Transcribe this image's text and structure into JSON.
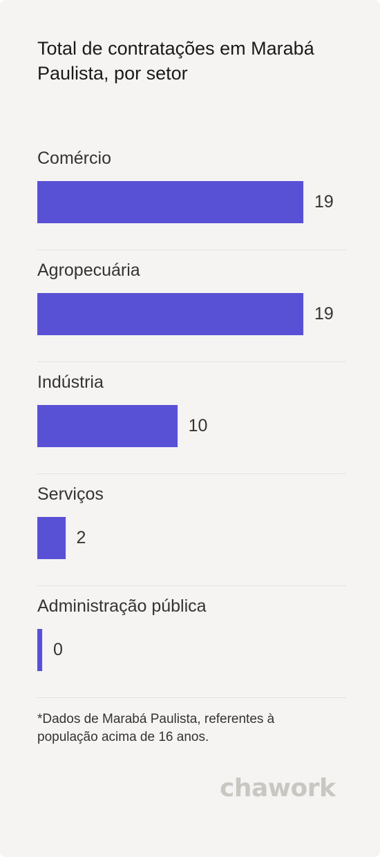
{
  "header": {
    "title": "Total de contratações em Marabá Paulista, por setor"
  },
  "chart_data": {
    "type": "bar",
    "orientation": "horizontal",
    "title": "Total de contratações em Marabá Paulista, por setor",
    "categories": [
      "Comércio",
      "Agropecuária",
      "Indústria",
      "Serviços",
      "Administração pública"
    ],
    "values": [
      19,
      19,
      10,
      2,
      0
    ],
    "value_labels": [
      "19",
      "19",
      "10",
      "2",
      "0"
    ],
    "xlim": [
      0,
      19
    ],
    "grid": false,
    "legend": "none",
    "bar_color": "#5851d6"
  },
  "footnote": "*Dados de Marabá Paulista, referentes à população acima de 16 anos.",
  "brand": {
    "name": "chawork",
    "color": "#c9c7c2"
  }
}
